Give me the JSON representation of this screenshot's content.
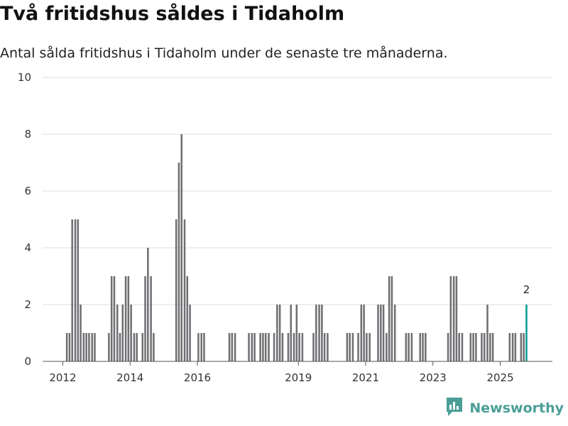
{
  "title": "Två fritidshus såldes i Tidaholm",
  "subtitle": "Antal sålda fritidshus i Tidaholm under de senaste tre månaderna.",
  "brand": {
    "name": "Newsworthy",
    "icon": "bar-chart-logo-icon"
  },
  "colors": {
    "bar": "#707074",
    "highlight": "#0a9b93",
    "grid": "#dddddd",
    "axis": "#555555",
    "brand": "#4a9e97"
  },
  "chart_data": {
    "type": "bar",
    "title": "Två fritidshus såldes i Tidaholm",
    "xlabel": "",
    "ylabel": "",
    "ylim": [
      0,
      10
    ],
    "yticks": [
      0,
      2,
      4,
      6,
      8,
      10
    ],
    "xlim": [
      2011.4,
      2026.55
    ],
    "xticks": [
      {
        "value": 2012,
        "label": "2012"
      },
      {
        "value": 2014,
        "label": "2014"
      },
      {
        "value": 2016,
        "label": "2016"
      },
      {
        "value": 2019,
        "label": "2019"
      },
      {
        "value": 2021,
        "label": "2021"
      },
      {
        "value": 2023,
        "label": "2023"
      },
      {
        "value": 2025,
        "label": "2025"
      }
    ],
    "period_width_years": 0.0833,
    "series": [
      {
        "name": "Antal sålda fritidshus",
        "points": [
          {
            "x": 2012.12,
            "value": 1
          },
          {
            "x": 2012.2,
            "value": 1
          },
          {
            "x": 2012.28,
            "value": 5
          },
          {
            "x": 2012.37,
            "value": 5
          },
          {
            "x": 2012.45,
            "value": 5
          },
          {
            "x": 2012.53,
            "value": 2
          },
          {
            "x": 2012.62,
            "value": 1
          },
          {
            "x": 2012.7,
            "value": 1
          },
          {
            "x": 2012.78,
            "value": 1
          },
          {
            "x": 2012.87,
            "value": 1
          },
          {
            "x": 2012.95,
            "value": 1
          },
          {
            "x": 2013.37,
            "value": 1
          },
          {
            "x": 2013.45,
            "value": 3
          },
          {
            "x": 2013.53,
            "value": 3
          },
          {
            "x": 2013.62,
            "value": 2
          },
          {
            "x": 2013.7,
            "value": 1
          },
          {
            "x": 2013.78,
            "value": 2
          },
          {
            "x": 2013.87,
            "value": 3
          },
          {
            "x": 2013.95,
            "value": 3
          },
          {
            "x": 2014.03,
            "value": 2
          },
          {
            "x": 2014.12,
            "value": 1
          },
          {
            "x": 2014.2,
            "value": 1
          },
          {
            "x": 2014.37,
            "value": 1
          },
          {
            "x": 2014.45,
            "value": 3
          },
          {
            "x": 2014.53,
            "value": 4
          },
          {
            "x": 2014.62,
            "value": 3
          },
          {
            "x": 2014.7,
            "value": 1
          },
          {
            "x": 2015.37,
            "value": 5
          },
          {
            "x": 2015.45,
            "value": 7
          },
          {
            "x": 2015.53,
            "value": 8
          },
          {
            "x": 2015.62,
            "value": 5
          },
          {
            "x": 2015.7,
            "value": 3
          },
          {
            "x": 2015.78,
            "value": 2
          },
          {
            "x": 2016.03,
            "value": 1
          },
          {
            "x": 2016.12,
            "value": 1
          },
          {
            "x": 2016.2,
            "value": 1
          },
          {
            "x": 2016.95,
            "value": 1
          },
          {
            "x": 2017.03,
            "value": 1
          },
          {
            "x": 2017.12,
            "value": 1
          },
          {
            "x": 2017.53,
            "value": 1
          },
          {
            "x": 2017.62,
            "value": 1
          },
          {
            "x": 2017.7,
            "value": 1
          },
          {
            "x": 2017.87,
            "value": 1
          },
          {
            "x": 2017.95,
            "value": 1
          },
          {
            "x": 2018.03,
            "value": 1
          },
          {
            "x": 2018.12,
            "value": 1
          },
          {
            "x": 2018.28,
            "value": 1
          },
          {
            "x": 2018.37,
            "value": 2
          },
          {
            "x": 2018.45,
            "value": 2
          },
          {
            "x": 2018.53,
            "value": 1
          },
          {
            "x": 2018.7,
            "value": 1
          },
          {
            "x": 2018.78,
            "value": 2
          },
          {
            "x": 2018.87,
            "value": 1
          },
          {
            "x": 2018.95,
            "value": 2
          },
          {
            "x": 2019.03,
            "value": 1
          },
          {
            "x": 2019.12,
            "value": 1
          },
          {
            "x": 2019.45,
            "value": 1
          },
          {
            "x": 2019.53,
            "value": 2
          },
          {
            "x": 2019.62,
            "value": 2
          },
          {
            "x": 2019.7,
            "value": 2
          },
          {
            "x": 2019.78,
            "value": 1
          },
          {
            "x": 2019.87,
            "value": 1
          },
          {
            "x": 2020.45,
            "value": 1
          },
          {
            "x": 2020.53,
            "value": 1
          },
          {
            "x": 2020.62,
            "value": 1
          },
          {
            "x": 2020.78,
            "value": 1
          },
          {
            "x": 2020.87,
            "value": 2
          },
          {
            "x": 2020.95,
            "value": 2
          },
          {
            "x": 2021.03,
            "value": 1
          },
          {
            "x": 2021.12,
            "value": 1
          },
          {
            "x": 2021.37,
            "value": 2
          },
          {
            "x": 2021.45,
            "value": 2
          },
          {
            "x": 2021.53,
            "value": 2
          },
          {
            "x": 2021.62,
            "value": 1
          },
          {
            "x": 2021.7,
            "value": 3
          },
          {
            "x": 2021.78,
            "value": 3
          },
          {
            "x": 2021.87,
            "value": 2
          },
          {
            "x": 2022.2,
            "value": 1
          },
          {
            "x": 2022.28,
            "value": 1
          },
          {
            "x": 2022.37,
            "value": 1
          },
          {
            "x": 2022.62,
            "value": 1
          },
          {
            "x": 2022.7,
            "value": 1
          },
          {
            "x": 2022.78,
            "value": 1
          },
          {
            "x": 2023.45,
            "value": 1
          },
          {
            "x": 2023.53,
            "value": 3
          },
          {
            "x": 2023.62,
            "value": 3
          },
          {
            "x": 2023.7,
            "value": 3
          },
          {
            "x": 2023.78,
            "value": 1
          },
          {
            "x": 2023.87,
            "value": 1
          },
          {
            "x": 2024.12,
            "value": 1
          },
          {
            "x": 2024.2,
            "value": 1
          },
          {
            "x": 2024.28,
            "value": 1
          },
          {
            "x": 2024.45,
            "value": 1
          },
          {
            "x": 2024.53,
            "value": 1
          },
          {
            "x": 2024.62,
            "value": 2
          },
          {
            "x": 2024.7,
            "value": 1
          },
          {
            "x": 2024.78,
            "value": 1
          },
          {
            "x": 2025.28,
            "value": 1
          },
          {
            "x": 2025.37,
            "value": 1
          },
          {
            "x": 2025.45,
            "value": 1
          },
          {
            "x": 2025.62,
            "value": 1
          },
          {
            "x": 2025.7,
            "value": 1
          },
          {
            "x": 2025.78,
            "value": 2,
            "highlight": true,
            "label": "2"
          }
        ]
      }
    ]
  }
}
